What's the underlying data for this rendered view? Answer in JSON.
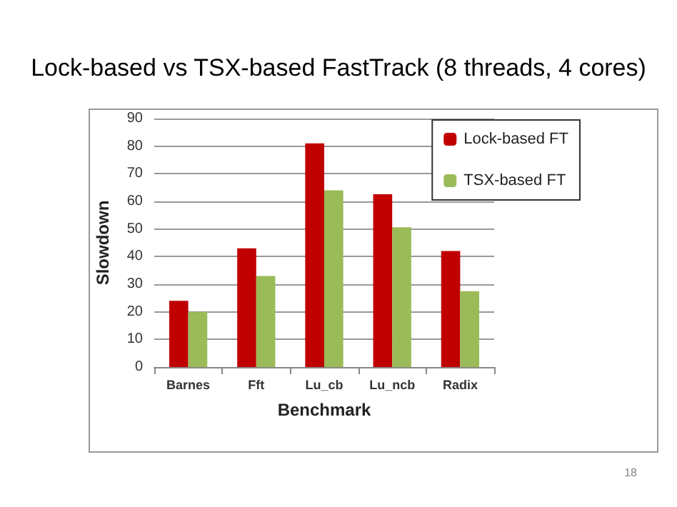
{
  "chart_data": {
    "type": "bar",
    "title": "Lock-based vs TSX-based FastTrack (8 threads, 4 cores)",
    "xlabel": "Benchmark",
    "ylabel": "Slowdown",
    "categories": [
      "Barnes",
      "Fft",
      "Lu_cb",
      "Lu_ncb",
      "Radix"
    ],
    "series": [
      {
        "name": "Lock-based FT",
        "color": "#c00000",
        "values": [
          24,
          43,
          81,
          62.6,
          42
        ]
      },
      {
        "name": "TSX-based FT",
        "color": "#9bbb59",
        "values": [
          20,
          33,
          64,
          50.6,
          27.5
        ]
      }
    ],
    "ylim": [
      0,
      90
    ],
    "yticks": [
      0,
      10,
      20,
      30,
      40,
      50,
      60,
      70,
      80,
      90
    ],
    "grid": "y",
    "legend": "top right",
    "annotations": [
      "18"
    ]
  }
}
